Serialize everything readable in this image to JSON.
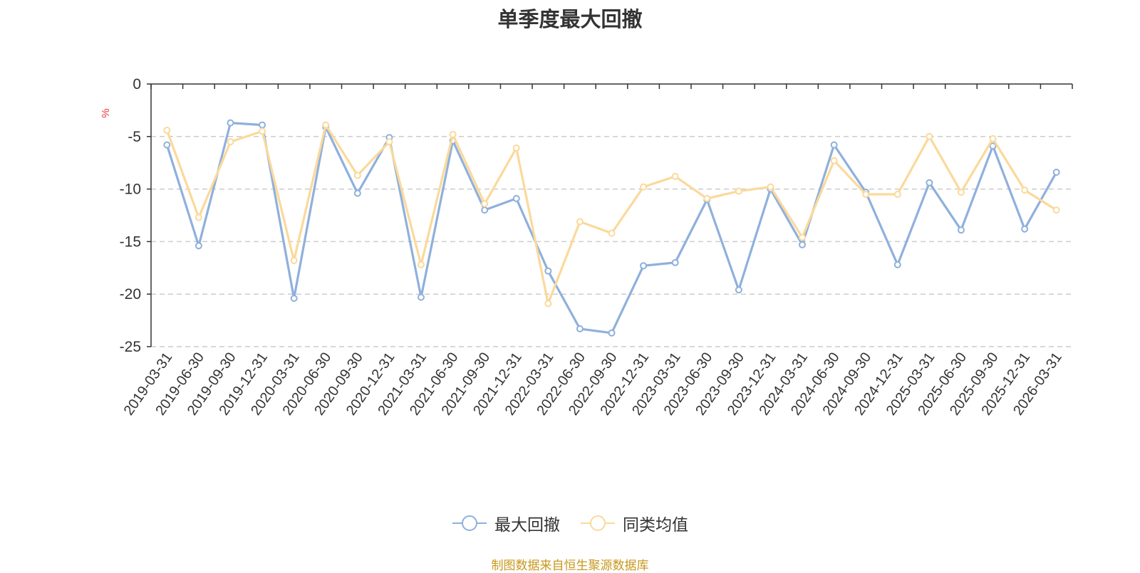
{
  "chart_data": {
    "type": "line",
    "title": "单季度最大回撤",
    "ylabel": "%",
    "ylim": [
      -25,
      0
    ],
    "yticks": [
      "0",
      "-5",
      "-10",
      "-15",
      "-20",
      "-25"
    ],
    "grid": true,
    "legend_position": "bottom",
    "categories": [
      "2019-03-31",
      "2019-06-30",
      "2019-09-30",
      "2019-12-31",
      "2020-03-31",
      "2020-06-30",
      "2020-09-30",
      "2020-12-31",
      "2021-03-31",
      "2021-06-30",
      "2021-09-30",
      "2021-12-31",
      "2022-03-31",
      "2022-06-30",
      "2022-09-30",
      "2022-12-31",
      "2023-03-31",
      "2023-06-30",
      "2023-09-30",
      "2023-12-31",
      "2024-03-31",
      "2024-06-30",
      "2024-09-30",
      "2024-12-31",
      "2025-03-31",
      "2025-06-30",
      "2025-09-30",
      "2025-12-31",
      "2026-03-31"
    ],
    "series": [
      {
        "name": "最大回撤",
        "color": "#8fb0dc",
        "values": [
          -5.8,
          -15.4,
          -3.7,
          -3.9,
          -20.4,
          -4.1,
          -10.4,
          -5.1,
          -20.3,
          -5.4,
          -12.0,
          -10.9,
          -17.8,
          -23.3,
          -23.7,
          -17.3,
          -17.0,
          -11.0,
          -19.6,
          -10.0,
          -15.3,
          -5.8,
          -10.3,
          -17.2,
          -9.4,
          -13.9,
          -5.9,
          -13.8,
          -8.4
        ]
      },
      {
        "name": "同类均值",
        "color": "#fbd99b",
        "values": [
          -4.4,
          -12.7,
          -5.5,
          -4.5,
          -16.8,
          -3.9,
          -8.7,
          -5.5,
          -17.2,
          -4.8,
          -11.4,
          -6.1,
          -20.9,
          -13.1,
          -14.2,
          -9.8,
          -8.8,
          -10.9,
          -10.2,
          -9.8,
          -14.6,
          -7.3,
          -10.5,
          -10.5,
          -5.0,
          -10.3,
          -5.2,
          -10.1,
          -12.0
        ]
      }
    ]
  },
  "source_note": "制图数据来自恒生聚源数据库"
}
